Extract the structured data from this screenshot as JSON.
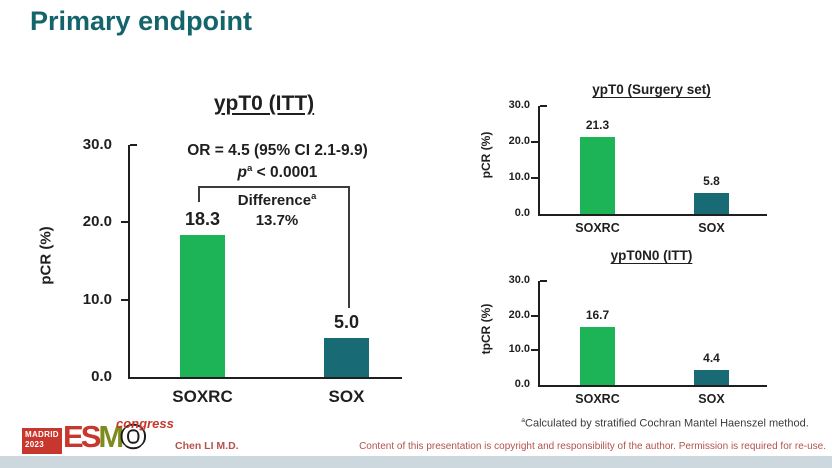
{
  "slide": {
    "title": "Primary endpoint",
    "author": "Chen LI M.D.",
    "copyright": "Content of this presentation is copyright and responsibility of the author. Permission is required for re-use.",
    "footnote_sup": "a",
    "footnote": "Calculated by stratified Cochran Mantel Haenszel method."
  },
  "logo": {
    "city": "MADRID",
    "year": "2023",
    "letter_e": "E",
    "letter_s": "S",
    "letter_m": "M",
    "letter_o": "O",
    "congress": "congress"
  },
  "colors": {
    "title_teal": "#14646b",
    "bar_green": "#1db457",
    "bar_teal": "#186b74",
    "text_red": "#b5524c",
    "logo_red": "#c8372d",
    "logo_olive": "#7d8c1e",
    "footer_strip": "#ccd7de"
  },
  "chart_data": [
    {
      "type": "bar",
      "title": "ypT0 (ITT)",
      "ylabel": "pCR (%)",
      "ylim": [
        0,
        30
      ],
      "ytick_labels": [
        "30.0",
        "20.0",
        "10.0",
        "0.0"
      ],
      "grid": false,
      "legend": false,
      "categories": [
        "SOXRC",
        "SOX"
      ],
      "values": [
        18.3,
        5.0
      ],
      "value_labels": [
        "18.3",
        "5.0"
      ],
      "bar_colors": [
        "#1db457",
        "#186b74"
      ],
      "annotations": {
        "or_text": "OR = 4.5 (95% CI 2.1-9.9)",
        "p_italic": "p",
        "p_sup": "a",
        "p_rest": " < 0.0001",
        "difference_label": "Difference",
        "difference_sup": "a",
        "difference_value": "13.7%"
      }
    },
    {
      "type": "bar",
      "title": "ypT0 (Surgery set)",
      "ylabel": "pCR (%)",
      "ylim": [
        0,
        30
      ],
      "ytick_labels": [
        "30.0",
        "20.0",
        "10.0",
        "0.0"
      ],
      "grid": false,
      "legend": false,
      "categories": [
        "SOXRC",
        "SOX"
      ],
      "values": [
        21.3,
        5.8
      ],
      "value_labels": [
        "21.3",
        "5.8"
      ],
      "bar_colors": [
        "#1db457",
        "#186b74"
      ]
    },
    {
      "type": "bar",
      "title": "ypT0N0 (ITT)",
      "ylabel": "tpCR (%)",
      "ylim": [
        0,
        30
      ],
      "ytick_labels": [
        "30.0",
        "20.0",
        "10.0",
        "0.0"
      ],
      "grid": false,
      "legend": false,
      "categories": [
        "SOXRC",
        "SOX"
      ],
      "values": [
        16.7,
        4.4
      ],
      "value_labels": [
        "16.7",
        "4.4"
      ],
      "bar_colors": [
        "#1db457",
        "#186b74"
      ]
    }
  ]
}
